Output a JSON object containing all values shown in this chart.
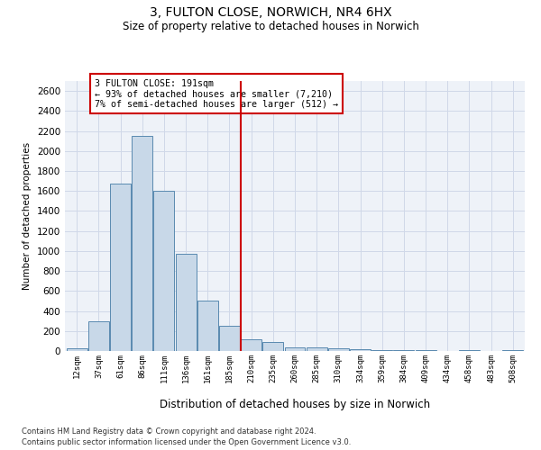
{
  "title1": "3, FULTON CLOSE, NORWICH, NR4 6HX",
  "title2": "Size of property relative to detached houses in Norwich",
  "xlabel": "Distribution of detached houses by size in Norwich",
  "ylabel": "Number of detached properties",
  "footnote1": "Contains HM Land Registry data © Crown copyright and database right 2024.",
  "footnote2": "Contains public sector information licensed under the Open Government Licence v3.0.",
  "bin_labels": [
    "12sqm",
    "37sqm",
    "61sqm",
    "86sqm",
    "111sqm",
    "136sqm",
    "161sqm",
    "185sqm",
    "210sqm",
    "235sqm",
    "260sqm",
    "285sqm",
    "310sqm",
    "334sqm",
    "359sqm",
    "384sqm",
    "409sqm",
    "434sqm",
    "458sqm",
    "483sqm",
    "508sqm"
  ],
  "bar_values": [
    25,
    300,
    1670,
    2150,
    1600,
    970,
    500,
    250,
    120,
    90,
    40,
    35,
    25,
    15,
    10,
    10,
    5,
    0,
    5,
    0,
    5
  ],
  "bar_color": "#c8d8e8",
  "bar_edge_color": "#5a8ab0",
  "vline_x": 7.5,
  "vline_color": "#cc0000",
  "annotation_text": "3 FULTON CLOSE: 191sqm\n← 93% of detached houses are smaller (7,210)\n7% of semi-detached houses are larger (512) →",
  "annotation_box_color": "#ffffff",
  "annotation_box_edge": "#cc0000",
  "ylim": [
    0,
    2700
  ],
  "yticks": [
    0,
    200,
    400,
    600,
    800,
    1000,
    1200,
    1400,
    1600,
    1800,
    2000,
    2200,
    2400,
    2600
  ],
  "grid_color": "#d0d8e8",
  "bg_color": "#eef2f8"
}
